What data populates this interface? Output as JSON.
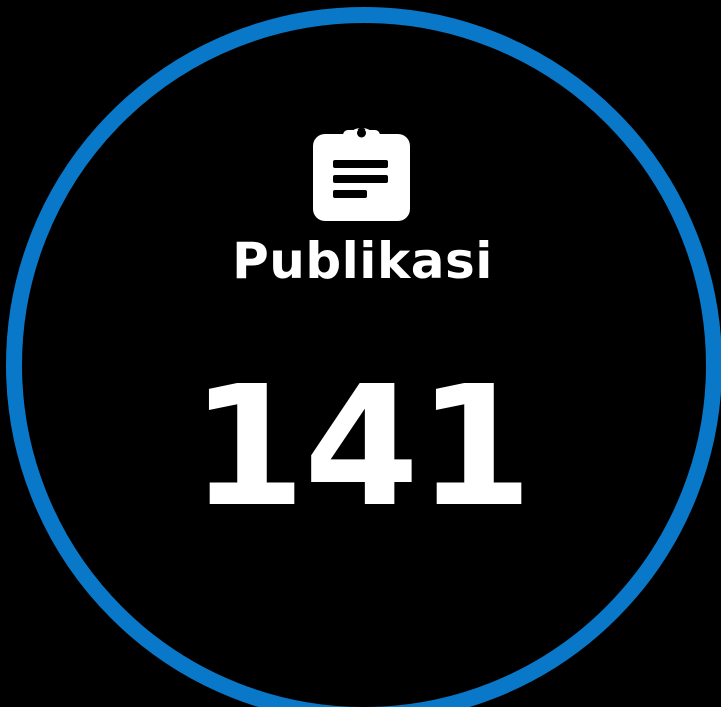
{
  "stat": {
    "icon": "clipboard-list-icon",
    "label": "Publikasi",
    "value": "141"
  },
  "colors": {
    "ring": "#0a78c8",
    "background": "#000000",
    "text": "#ffffff"
  }
}
